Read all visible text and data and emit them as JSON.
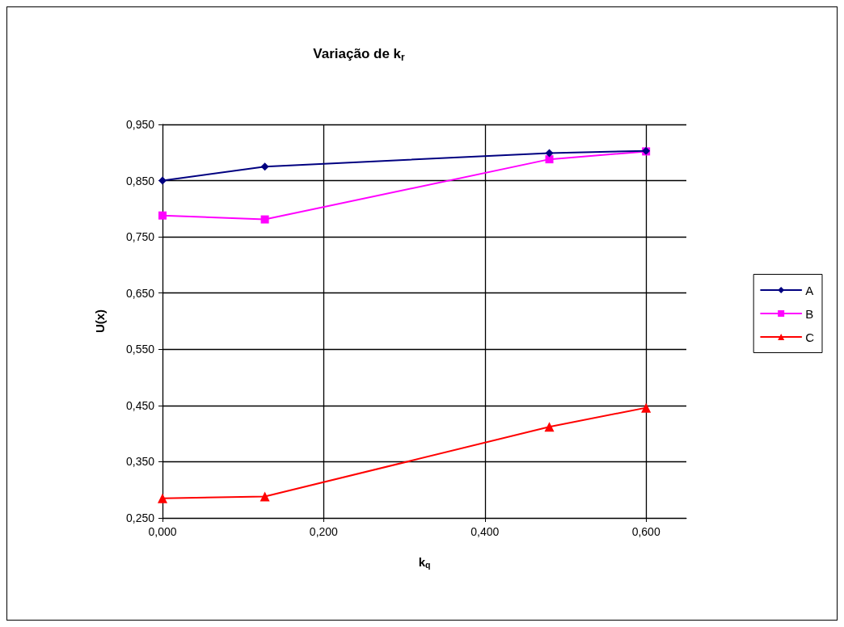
{
  "chart_data": {
    "type": "line",
    "title": "Variação de k$_{r}$",
    "xlabel": "k$_{q}$",
    "ylabel": "U(x)",
    "series": [
      {
        "name": "A",
        "color": "#000080",
        "marker": "diamond",
        "x": [
          0,
          0.127,
          0.48,
          0.6
        ],
        "values": [
          0.85,
          0.875,
          0.899,
          0.903
        ]
      },
      {
        "name": "B",
        "color": "#ff00ff",
        "marker": "square",
        "x": [
          0,
          0.127,
          0.48,
          0.6
        ],
        "values": [
          0.788,
          0.781,
          0.888,
          0.902
        ]
      },
      {
        "name": "C",
        "color": "#ff0000",
        "marker": "triangle",
        "x": [
          0,
          0.127,
          0.48,
          0.6
        ],
        "values": [
          0.285,
          0.288,
          0.412,
          0.446
        ]
      }
    ],
    "xlim": [
      0,
      0.65
    ],
    "xticks": [
      {
        "value": 0,
        "label": "0,000"
      },
      {
        "value": 0.2,
        "label": "0,200"
      },
      {
        "value": 0.4,
        "label": "0,400"
      },
      {
        "value": 0.6,
        "label": "0,600"
      }
    ],
    "ylim": [
      0.25,
      0.95
    ],
    "yticks": [
      {
        "value": 0.25,
        "label": "0,250"
      },
      {
        "value": 0.35,
        "label": "0,350"
      },
      {
        "value": 0.45,
        "label": "0,450"
      },
      {
        "value": 0.55,
        "label": "0,550"
      },
      {
        "value": 0.65,
        "label": "0,650"
      },
      {
        "value": 0.75,
        "label": "0,750"
      },
      {
        "value": 0.85,
        "label": "0,850"
      },
      {
        "value": 0.95,
        "label": "0,950"
      }
    ],
    "grid": true,
    "legend": "right",
    "line_style": "solid"
  }
}
